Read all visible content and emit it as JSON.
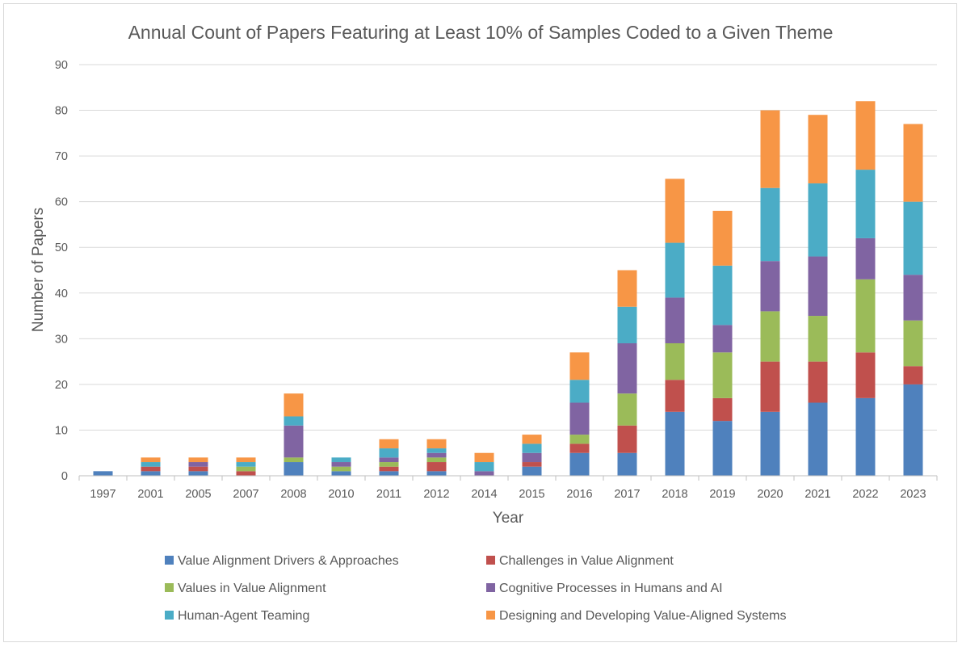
{
  "chart_data": {
    "type": "bar",
    "stacked": true,
    "title": "Annual Count of Papers Featuring at Least 10% of Samples Coded to a Given Theme",
    "xlabel": "Year",
    "ylabel": "Number of Papers",
    "ylim": [
      0,
      90
    ],
    "yticks": [
      0,
      10,
      20,
      30,
      40,
      50,
      60,
      70,
      80,
      90
    ],
    "grid": true,
    "legend_position": "bottom",
    "categories": [
      "1997",
      "2001",
      "2005",
      "2007",
      "2008",
      "2010",
      "2011",
      "2012",
      "2014",
      "2015",
      "2016",
      "2017",
      "2018",
      "2019",
      "2020",
      "2021",
      "2022",
      "2023"
    ],
    "series": [
      {
        "name": "Value Alignment Drivers & Approaches",
        "color": "#4f81bd",
        "values": [
          1,
          1,
          1,
          0,
          3,
          1,
          1,
          1,
          0,
          2,
          5,
          5,
          14,
          12,
          14,
          16,
          17,
          20
        ]
      },
      {
        "name": "Challenges in Value Alignment",
        "color": "#c0504d",
        "values": [
          0,
          1,
          1,
          1,
          0,
          0,
          1,
          2,
          0,
          1,
          2,
          6,
          7,
          5,
          11,
          9,
          10,
          4
        ]
      },
      {
        "name": "Values in Value Alignment",
        "color": "#9bbb59",
        "values": [
          0,
          0,
          0,
          1,
          1,
          1,
          1,
          1,
          0,
          0,
          2,
          7,
          8,
          10,
          11,
          10,
          16,
          10
        ]
      },
      {
        "name": "Cognitive Processes in Humans and AI",
        "color": "#8064a2",
        "values": [
          0,
          0,
          1,
          0,
          7,
          1,
          1,
          1,
          1,
          2,
          7,
          11,
          10,
          6,
          11,
          13,
          9,
          10
        ]
      },
      {
        "name": "Human-Agent Teaming",
        "color": "#4bacc6",
        "values": [
          0,
          1,
          0,
          1,
          2,
          1,
          2,
          1,
          2,
          2,
          5,
          8,
          12,
          13,
          16,
          16,
          15,
          16
        ]
      },
      {
        "name": "Designing and Developing Value-Aligned Systems",
        "color": "#f79646",
        "values": [
          0,
          1,
          1,
          1,
          5,
          0,
          2,
          2,
          2,
          2,
          6,
          8,
          14,
          12,
          17,
          15,
          15,
          17
        ]
      }
    ]
  }
}
